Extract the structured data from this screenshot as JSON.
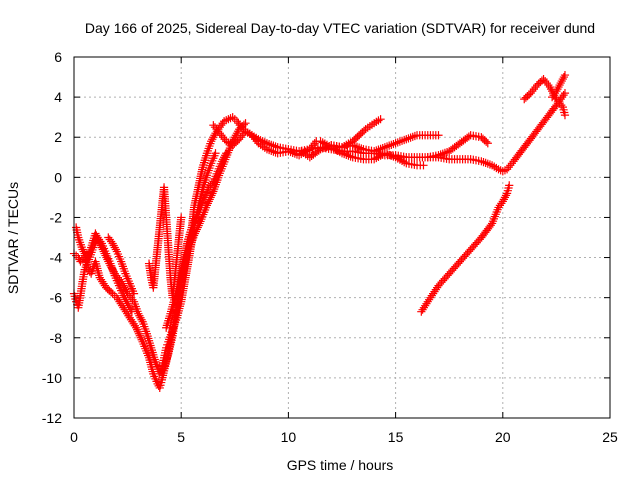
{
  "chart_data": {
    "type": "scatter",
    "title": "Day 166 of 2025, Sidereal Day-to-day VTEC variation (SDTVAR) for receiver dund",
    "xlabel": "GPS time / hours",
    "ylabel": "SDTVAR / TECUs",
    "xlim": [
      0,
      25
    ],
    "ylim": [
      -12,
      6
    ],
    "xticks": [
      0,
      5,
      10,
      15,
      20,
      25
    ],
    "yticks": [
      -12,
      -10,
      -8,
      -6,
      -4,
      -2,
      0,
      2,
      4,
      6
    ],
    "grid": true,
    "marker": "plus",
    "color": "#ff0000",
    "series": [
      {
        "name": "SDTVAR",
        "tracks": [
          {
            "x": [
              0.0,
              0.2,
              0.3,
              0.5,
              0.6,
              0.8,
              1.0,
              1.2,
              1.5,
              1.8,
              2.0,
              2.3,
              2.6,
              2.9,
              3.2,
              3.5,
              3.7,
              3.9,
              4.0,
              4.1,
              4.3,
              4.5,
              4.7,
              4.9,
              5.1,
              5.3,
              5.5,
              5.6,
              5.8,
              6.0,
              6.2,
              6.4,
              6.6,
              6.8,
              7.0,
              7.2,
              7.4,
              7.6,
              7.8,
              8.0,
              8.3,
              8.6,
              9.0,
              9.5,
              10.0,
              10.5,
              11.0,
              11.5,
              12.0,
              12.5,
              13.0,
              13.5,
              14.0,
              14.5,
              15.0,
              15.5,
              16.0,
              16.5,
              17.0,
              17.5,
              18.0,
              18.5,
              19.0,
              19.5,
              19.8,
              20.0,
              20.2,
              20.5,
              21.0,
              21.5,
              22.0,
              22.5,
              22.9
            ],
            "y": [
              -3.8,
              -4.0,
              -4.2,
              -3.9,
              -4.5,
              -4.8,
              -4.2,
              -5.0,
              -5.5,
              -5.8,
              -6.0,
              -6.5,
              -7.0,
              -7.5,
              -8.2,
              -9.0,
              -9.8,
              -10.3,
              -10.5,
              -10.1,
              -9.2,
              -8.2,
              -7.0,
              -5.8,
              -4.5,
              -3.2,
              -2.5,
              -1.5,
              -0.5,
              0.5,
              1.2,
              1.8,
              2.2,
              2.5,
              2.8,
              2.9,
              3.0,
              2.8,
              2.5,
              2.3,
              2.1,
              1.9,
              1.7,
              1.5,
              1.4,
              1.3,
              1.4,
              1.5,
              1.4,
              1.3,
              1.3,
              1.2,
              1.2,
              1.1,
              1.1,
              1.0,
              1.0,
              1.0,
              1.0,
              0.9,
              0.9,
              0.9,
              0.8,
              0.6,
              0.4,
              0.3,
              0.4,
              0.8,
              1.5,
              2.2,
              2.9,
              3.6,
              4.2
            ]
          },
          {
            "x": [
              0.1,
              0.2,
              0.4,
              0.6,
              0.8,
              1.0,
              1.3,
              1.6,
              1.9,
              2.2,
              2.5,
              2.8,
              3.0,
              3.2,
              3.4,
              3.6,
              3.8,
              4.0,
              4.2,
              4.4,
              4.6,
              4.8,
              5.0,
              5.3,
              5.6,
              5.9,
              6.2,
              6.5,
              6.8,
              7.1,
              7.4,
              7.7,
              8.0
            ],
            "y": [
              -2.5,
              -3.0,
              -3.6,
              -4.0,
              -3.5,
              -2.8,
              -3.5,
              -4.2,
              -4.8,
              -5.2,
              -5.8,
              -6.2,
              -6.8,
              -7.2,
              -7.8,
              -8.5,
              -9.2,
              -9.8,
              -9.5,
              -8.8,
              -7.9,
              -6.5,
              -5.2,
              -3.8,
              -2.9,
              -2.2,
              -1.4,
              -0.7,
              0.2,
              1.0,
              1.8,
              2.4,
              2.7
            ]
          },
          {
            "x": [
              0.0,
              0.1,
              0.2,
              0.3,
              0.4,
              0.5,
              0.7,
              0.9,
              1.1,
              1.3,
              1.5,
              1.7,
              1.9,
              2.1,
              2.3,
              2.5,
              2.7
            ],
            "y": [
              -5.8,
              -6.2,
              -6.5,
              -5.9,
              -5.2,
              -4.6,
              -4.1,
              -3.5,
              -3.0,
              -3.3,
              -3.8,
              -4.3,
              -4.9,
              -5.4,
              -5.9,
              -6.3,
              -6.7
            ]
          },
          {
            "x": [
              1.6,
              1.8,
              2.0,
              2.2,
              2.4,
              2.6,
              2.8
            ],
            "y": [
              -3.0,
              -3.3,
              -3.7,
              -4.2,
              -4.8,
              -5.3,
              -5.8
            ]
          },
          {
            "x": [
              3.5,
              3.6,
              3.7,
              3.8,
              3.9,
              4.0,
              4.1,
              4.2,
              4.3,
              4.4,
              4.5,
              4.6,
              4.7,
              4.8,
              4.9,
              5.0
            ],
            "y": [
              -4.3,
              -5.0,
              -5.5,
              -4.5,
              -3.5,
              -2.5,
              -1.5,
              -0.5,
              -2.0,
              -3.5,
              -5.0,
              -6.0,
              -5.0,
              -4.0,
              -3.0,
              -2.0
            ]
          },
          {
            "x": [
              4.1,
              4.2,
              4.3,
              4.4,
              4.6,
              4.8,
              5.0,
              5.2,
              5.4,
              5.6,
              5.8,
              6.0,
              6.2,
              6.4,
              6.6
            ],
            "y": [
              -9.5,
              -9.0,
              -8.5,
              -8.2,
              -7.6,
              -7.0,
              -6.2,
              -5.0,
              -3.8,
              -2.5,
              -1.5,
              -0.6,
              0.1,
              0.7,
              1.2
            ]
          },
          {
            "x": [
              4.3,
              4.5,
              4.7,
              4.9,
              5.1,
              5.3,
              5.5,
              5.7,
              5.9,
              6.1,
              6.3,
              6.5,
              6.7,
              6.9,
              7.1
            ],
            "y": [
              -7.5,
              -6.8,
              -6.0,
              -5.2,
              -4.2,
              -3.2,
              -2.5,
              -2.0,
              -1.5,
              -1.0,
              -0.5,
              -0.2,
              0.3,
              0.8,
              1.2
            ]
          },
          {
            "x": [
              6.5,
              6.8,
              7.1,
              7.4,
              7.7,
              8.0,
              8.3,
              8.6,
              9.0,
              9.5,
              10.0,
              10.5,
              11.0,
              11.3
            ],
            "y": [
              2.6,
              2.2,
              1.8,
              1.6,
              1.9,
              2.3,
              2.1,
              1.7,
              1.4,
              1.2,
              1.3,
              1.1,
              1.4,
              1.8
            ]
          },
          {
            "x": [
              10.6,
              11.0,
              11.5,
              12.0,
              12.5,
              13.0,
              13.3,
              13.6,
              14.0,
              14.3
            ],
            "y": [
              1.3,
              1.0,
              1.4,
              1.6,
              1.5,
              1.8,
              2.1,
              2.4,
              2.7,
              2.9
            ]
          },
          {
            "x": [
              11.5,
              12.0,
              12.5,
              13.0,
              13.5,
              14.0,
              14.5,
              15.0,
              15.5,
              16.0,
              16.3
            ],
            "y": [
              1.8,
              1.5,
              1.2,
              1.0,
              0.9,
              0.9,
              1.2,
              1.0,
              0.7,
              0.6,
              0.6
            ]
          },
          {
            "x": [
              12.0,
              12.5,
              13.0,
              13.5,
              14.0,
              14.5,
              15.0,
              15.5,
              16.0,
              16.5,
              17.0
            ],
            "y": [
              1.6,
              1.5,
              1.6,
              1.4,
              1.3,
              1.5,
              1.7,
              1.9,
              2.1,
              2.1,
              2.1
            ]
          },
          {
            "x": [
              16.5,
              17.0,
              17.5,
              18.0,
              18.5,
              19.0,
              19.3
            ],
            "y": [
              1.0,
              1.1,
              1.3,
              1.7,
              2.1,
              2.0,
              1.7
            ]
          },
          {
            "x": [
              16.2,
              16.5,
              17.0,
              17.5,
              18.0,
              18.5,
              19.0,
              19.5,
              19.8,
              20.0,
              20.2,
              20.3
            ],
            "y": [
              -6.7,
              -6.2,
              -5.4,
              -4.8,
              -4.2,
              -3.6,
              -3.0,
              -2.3,
              -1.5,
              -1.2,
              -0.8,
              -0.4
            ]
          },
          {
            "x": [
              21.0,
              21.3,
              21.6,
              21.9,
              22.2,
              22.5,
              22.8,
              22.9
            ],
            "y": [
              3.9,
              4.2,
              4.6,
              4.9,
              4.5,
              3.9,
              3.5,
              3.1
            ]
          },
          {
            "x": [
              22.3,
              22.5,
              22.7,
              22.9
            ],
            "y": [
              4.0,
              4.3,
              4.7,
              5.1
            ]
          }
        ]
      }
    ]
  }
}
